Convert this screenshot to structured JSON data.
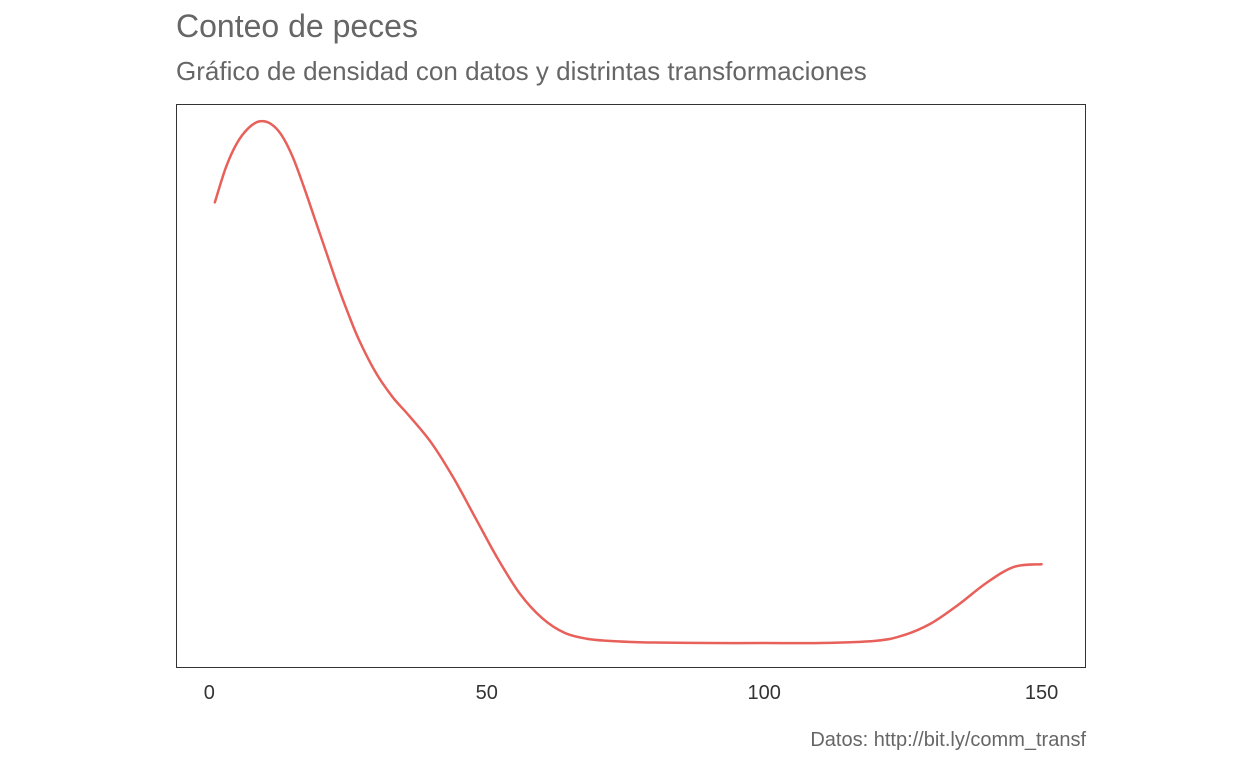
{
  "chart_data": {
    "type": "line",
    "title": "Conteo de peces",
    "subtitle": "Gráfico de densidad con datos y distrintas transformaciones",
    "caption": "Datos: http://bit.ly/comm_transf",
    "xlabel": "",
    "ylabel": "",
    "xlim": [
      -6,
      158
    ],
    "ylim": [
      0,
      1
    ],
    "x_ticks": [
      0,
      50,
      100,
      150
    ],
    "y_ticks": [],
    "grid": false,
    "legend": "none",
    "series": [
      {
        "color": "#E8605A",
        "x": [
          1,
          3,
          5,
          7,
          9,
          11,
          13,
          15,
          17,
          19,
          21,
          23,
          25,
          27,
          30,
          33,
          36,
          40,
          44,
          48,
          52,
          56,
          60,
          64,
          68,
          72,
          76,
          80,
          90,
          100,
          110,
          120,
          125,
          130,
          135,
          140,
          145,
          150
        ],
        "y": [
          0.84,
          0.905,
          0.95,
          0.977,
          0.99,
          0.986,
          0.965,
          0.925,
          0.87,
          0.81,
          0.75,
          0.69,
          0.635,
          0.585,
          0.525,
          0.48,
          0.445,
          0.395,
          0.33,
          0.255,
          0.18,
          0.115,
          0.07,
          0.043,
          0.032,
          0.028,
          0.026,
          0.025,
          0.024,
          0.024,
          0.024,
          0.028,
          0.038,
          0.06,
          0.095,
          0.135,
          0.165,
          0.17
        ]
      }
    ]
  }
}
